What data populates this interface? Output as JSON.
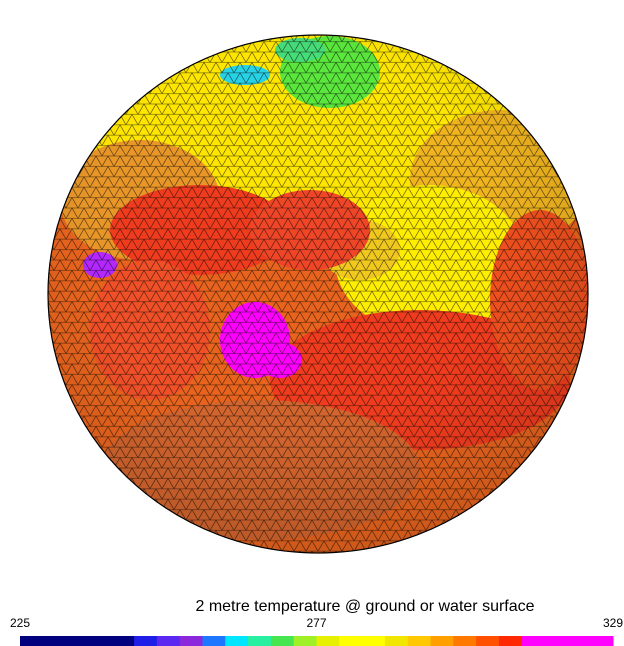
{
  "title": "2 metre temperature @ ground or water surface",
  "colorbar": {
    "min": 225,
    "max": 329,
    "ticks": [
      225,
      277,
      329
    ],
    "colors": [
      "#00007f",
      "#00007f",
      "#00007f",
      "#00007f",
      "#00007f",
      "#1e1ee6",
      "#5a28f0",
      "#8c28dc",
      "#1e78ff",
      "#00e6ff",
      "#28f0a0",
      "#46e650",
      "#a0f028",
      "#e6f000",
      "#ffff00",
      "#ffff00",
      "#f0e600",
      "#ffc800",
      "#ffa000",
      "#ff7800",
      "#ff5000",
      "#ff2800",
      "#ff00ff",
      "#ff00ff",
      "#ff00ff",
      "#ff00ff"
    ]
  }
}
